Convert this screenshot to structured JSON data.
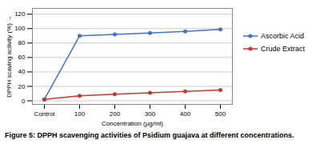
{
  "chart_data": {
    "type": "line",
    "caption": "Figure 5: DPPH scavenging activities of Psidium guajava at different concentrations.",
    "xlabel": "Concentration (μg/ml)",
    "ylabel": "DPPH scaving activity (%)",
    "categories": [
      "Control",
      "100",
      "200",
      "300",
      "400",
      "500"
    ],
    "series": [
      {
        "name": "Ascorbic Acid",
        "color": "#4472c4",
        "marker": "circle",
        "values": [
          2,
          90,
          92,
          94,
          96,
          99
        ]
      },
      {
        "name": "Crude Extract",
        "color": "#c0392b",
        "marker": "circle",
        "values": [
          2,
          7,
          9,
          11,
          13,
          15
        ]
      }
    ],
    "ylim": [
      -5,
      128
    ],
    "yticks": [
      0,
      20,
      40,
      60,
      80,
      100,
      120
    ],
    "grid": true,
    "legend": "right"
  }
}
